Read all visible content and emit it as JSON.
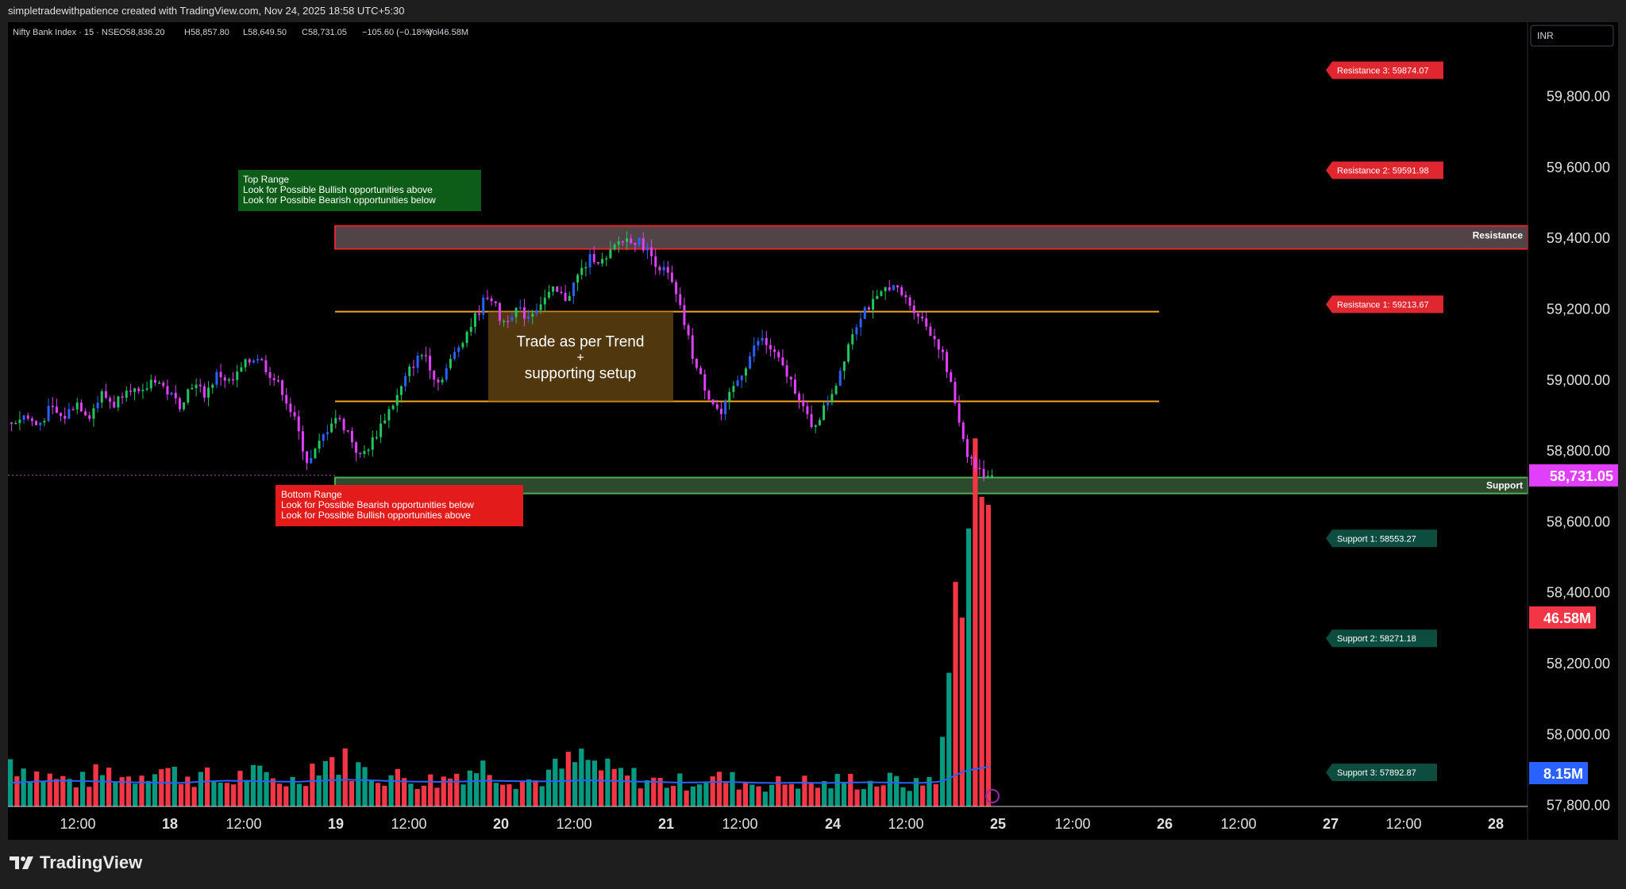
{
  "header": {
    "attribution": "simpletradewithpatience created with TradingView.com, Nov 24, 2025 18:58 UTC+5:30"
  },
  "footer": {
    "brand": "TradingView"
  },
  "colors": {
    "up": "#089981",
    "down": "#f23645",
    "magenta": "#e040fb",
    "orange": "#f7a325",
    "bg": "#000000",
    "support_green": "#4caf50",
    "resistance_red": "#e0272f"
  },
  "chart_data": {
    "type": "candlestick",
    "symbol_line": {
      "title": "Nifty Bank Index · 15 · NSE",
      "open": "O58,836.20",
      "high": "H58,857.80",
      "low": "L58,649.50",
      "close": "C58,731.05",
      "change": "−105.60 (−0.18%)",
      "volume": "Vol46.58M"
    },
    "currency_button": "INR",
    "y_axis": {
      "min": 57770,
      "max": 59920,
      "ticks": [
        "59,800.00",
        "59,600.00",
        "59,400.00",
        "59,200.00",
        "59,000.00",
        "58,800.00",
        "58,600.00",
        "58,400.00",
        "58,200.00",
        "58,000.00",
        "57,800.00"
      ],
      "tick_values": [
        59800,
        59600,
        59400,
        59200,
        59000,
        58800,
        58600,
        58400,
        58200,
        58000,
        57800
      ]
    },
    "x_axis": {
      "labels": [
        "12:00",
        "18",
        "12:00",
        "19",
        "12:00",
        "20",
        "12:00",
        "21",
        "12:00",
        "24",
        "12:00",
        "25",
        "12:00",
        "26",
        "12:00",
        "27",
        "12:00",
        "28"
      ],
      "bold_labels": [
        "18",
        "19",
        "20",
        "21",
        "24",
        "25",
        "26",
        "27",
        "28"
      ]
    },
    "price_badges": {
      "last_price": "58,731.05",
      "volume_last": "46.58M",
      "volume_ma": "8.15M"
    },
    "zones": {
      "resistance": {
        "label": "Resistance",
        "from": 59370,
        "to": 59435
      },
      "support": {
        "label": "Support",
        "from": 58680,
        "to": 58725
      }
    },
    "range_lines": {
      "top": 59193,
      "bottom": 58940
    },
    "levels": [
      {
        "label": "Resistance 3: 59874.07",
        "value": 59874.07,
        "kind": "resistance"
      },
      {
        "label": "Resistance 2: 59591.98",
        "value": 59591.98,
        "kind": "resistance"
      },
      {
        "label": "Resistance 1: 59213.67",
        "value": 59213.67,
        "kind": "resistance"
      },
      {
        "label": "Support 1: 58553.27",
        "value": 58553.27,
        "kind": "support"
      },
      {
        "label": "Support 2: 58271.18",
        "value": 58271.18,
        "kind": "support"
      },
      {
        "label": "Support 3: 57892.87",
        "value": 57892.87,
        "kind": "support"
      }
    ],
    "annotations": {
      "top_range": [
        "Top Range",
        "Look for Possible Bullish opportunities above",
        "Look for Possible Bearish opportunities below"
      ],
      "bottom_range": [
        "Bottom Range",
        "Look for Possible Bearish opportunities below",
        "Look for Possible Bullish opportunities above"
      ],
      "trade_box": [
        "Trade as per Trend",
        "+",
        "supporting setup"
      ]
    },
    "price_path": [
      58880,
      58900,
      58870,
      58920,
      58890,
      58940,
      58900,
      58960,
      58930,
      58990,
      58950,
      59010,
      58970,
      58930,
      58990,
      58960,
      59020,
      58990,
      59040,
      59070,
      59020,
      58970,
      58880,
      58760,
      58830,
      58900,
      58860,
      58780,
      58830,
      58900,
      58960,
      59040,
      59080,
      58990,
      59050,
      59120,
      59180,
      59250,
      59160,
      59200,
      59180,
      59220,
      59250,
      59230,
      59300,
      59350,
      59330,
      59390,
      59400,
      59380,
      59330,
      59290,
      59180,
      59040,
      58960,
      58900,
      58980,
      59050,
      59120,
      59080,
      59020,
      58960,
      58860,
      58920,
      59000,
      59120,
      59200,
      59220,
      59270,
      59240,
      59200,
      59150,
      59090,
      58960,
      58800,
      58740,
      58731
    ],
    "volume_profile": [
      300,
      210,
      170,
      160,
      220,
      180,
      260,
      200,
      190,
      150,
      210,
      170,
      160,
      300,
      280,
      210,
      190,
      170,
      160,
      230,
      250,
      180,
      160,
      240,
      300,
      220,
      190,
      160,
      150,
      180,
      170,
      150,
      140,
      160,
      130,
      170,
      150,
      160,
      130,
      220,
      1950,
      1900
    ],
    "volume_ma": [
      120,
      125,
      130,
      128,
      125,
      122,
      120,
      118,
      125,
      130,
      128,
      126,
      124,
      130,
      135,
      132,
      128,
      125,
      124,
      126,
      130,
      128,
      126,
      128,
      132,
      130,
      126,
      124,
      120,
      122,
      124,
      120,
      118,
      120,
      118,
      120,
      122,
      120,
      118,
      125,
      180,
      200
    ]
  }
}
